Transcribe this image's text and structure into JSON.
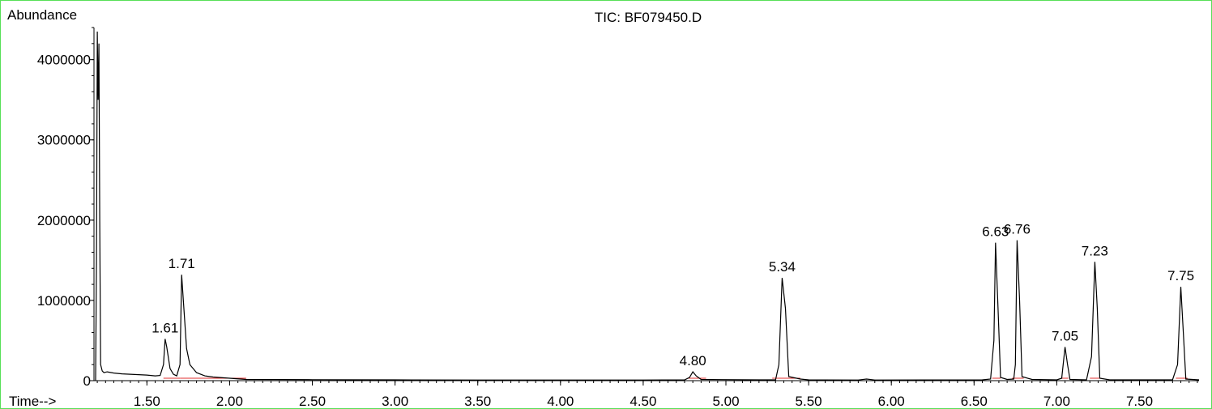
{
  "chart_data": {
    "type": "line",
    "title": "TIC: BF079450.D",
    "ylabel": "Abundance",
    "xlabel": "Time-->",
    "xlim": [
      1.18,
      7.86
    ],
    "ylim": [
      0,
      4400000
    ],
    "x_ticks": [
      "1.50",
      "2.00",
      "2.50",
      "3.00",
      "3.50",
      "4.00",
      "4.50",
      "5.00",
      "5.50",
      "6.00",
      "6.50",
      "7.00",
      "7.50"
    ],
    "x_tick_values": [
      1.5,
      2.0,
      2.5,
      3.0,
      3.5,
      4.0,
      4.5,
      5.0,
      5.5,
      6.0,
      6.5,
      7.0,
      7.5
    ],
    "y_ticks": [
      "0",
      "1000000",
      "2000000",
      "3000000",
      "4000000"
    ],
    "y_tick_values": [
      0,
      1000000,
      2000000,
      3000000,
      4000000
    ],
    "grid": false,
    "series": [
      {
        "x": [
          1.19,
          1.195,
          1.2,
          1.205,
          1.21,
          1.215,
          1.22,
          1.23,
          1.24,
          1.26,
          1.3,
          1.35,
          1.4,
          1.45,
          1.5,
          1.55,
          1.58,
          1.6,
          1.61,
          1.62,
          1.64,
          1.66,
          1.68,
          1.7,
          1.71,
          1.72,
          1.74,
          1.76,
          1.8,
          1.85,
          1.9,
          2.0,
          2.1,
          2.5,
          3.0,
          3.5,
          4.0,
          4.5,
          4.75,
          4.78,
          4.8,
          4.82,
          4.85,
          5.2,
          5.3,
          5.32,
          5.34,
          5.36,
          5.38,
          5.45,
          5.5,
          5.8,
          5.85,
          5.9,
          6.55,
          6.6,
          6.62,
          6.63,
          6.645,
          6.66,
          6.7,
          6.74,
          6.75,
          6.76,
          6.775,
          6.79,
          6.85,
          7.0,
          7.03,
          7.05,
          7.065,
          7.08,
          7.18,
          7.21,
          7.23,
          7.245,
          7.26,
          7.32,
          7.7,
          7.73,
          7.75,
          7.765,
          7.78,
          7.86
        ],
        "y": [
          0,
          1500000,
          4350000,
          3500000,
          4200000,
          2000000,
          200000,
          120000,
          100000,
          110000,
          95000,
          85000,
          80000,
          75000,
          70000,
          60000,
          65000,
          200000,
          520000,
          420000,
          150000,
          80000,
          60000,
          200000,
          1320000,
          1000000,
          400000,
          200000,
          100000,
          60000,
          45000,
          30000,
          15000,
          12000,
          10000,
          8000,
          8000,
          8000,
          10000,
          40000,
          110000,
          60000,
          15000,
          10000,
          10000,
          200000,
          1280000,
          900000,
          50000,
          20000,
          10000,
          8000,
          20000,
          8000,
          10000,
          20000,
          500000,
          1720000,
          900000,
          40000,
          15000,
          20000,
          200000,
          1750000,
          1000000,
          50000,
          15000,
          10000,
          30000,
          420000,
          200000,
          15000,
          10000,
          300000,
          1480000,
          900000,
          30000,
          10000,
          10000,
          200000,
          1170000,
          600000,
          20000,
          10000
        ]
      }
    ],
    "peak_labels": [
      {
        "text": "1.61",
        "x": 1.61,
        "y": 520000
      },
      {
        "text": "1.71",
        "x": 1.71,
        "y": 1320000
      },
      {
        "text": "4.80",
        "x": 4.8,
        "y": 110000
      },
      {
        "text": "5.34",
        "x": 5.34,
        "y": 1280000
      },
      {
        "text": "6.63",
        "x": 6.63,
        "y": 1720000
      },
      {
        "text": "6.76",
        "x": 6.76,
        "y": 1750000
      },
      {
        "text": "7.05",
        "x": 7.05,
        "y": 420000
      },
      {
        "text": "7.23",
        "x": 7.23,
        "y": 1480000
      },
      {
        "text": "7.75",
        "x": 7.75,
        "y": 1170000
      }
    ],
    "baseline_segments": [
      [
        1.6,
        1.7
      ],
      [
        1.7,
        2.1
      ],
      [
        4.77,
        4.88
      ],
      [
        5.28,
        5.45
      ],
      [
        6.61,
        6.66
      ],
      [
        6.73,
        6.8
      ],
      [
        7.03,
        7.07
      ],
      [
        7.2,
        7.27
      ],
      [
        7.72,
        7.79
      ]
    ],
    "trace_color": "#000000",
    "baseline_color": "#e03030",
    "frame_color": "#58e058"
  }
}
